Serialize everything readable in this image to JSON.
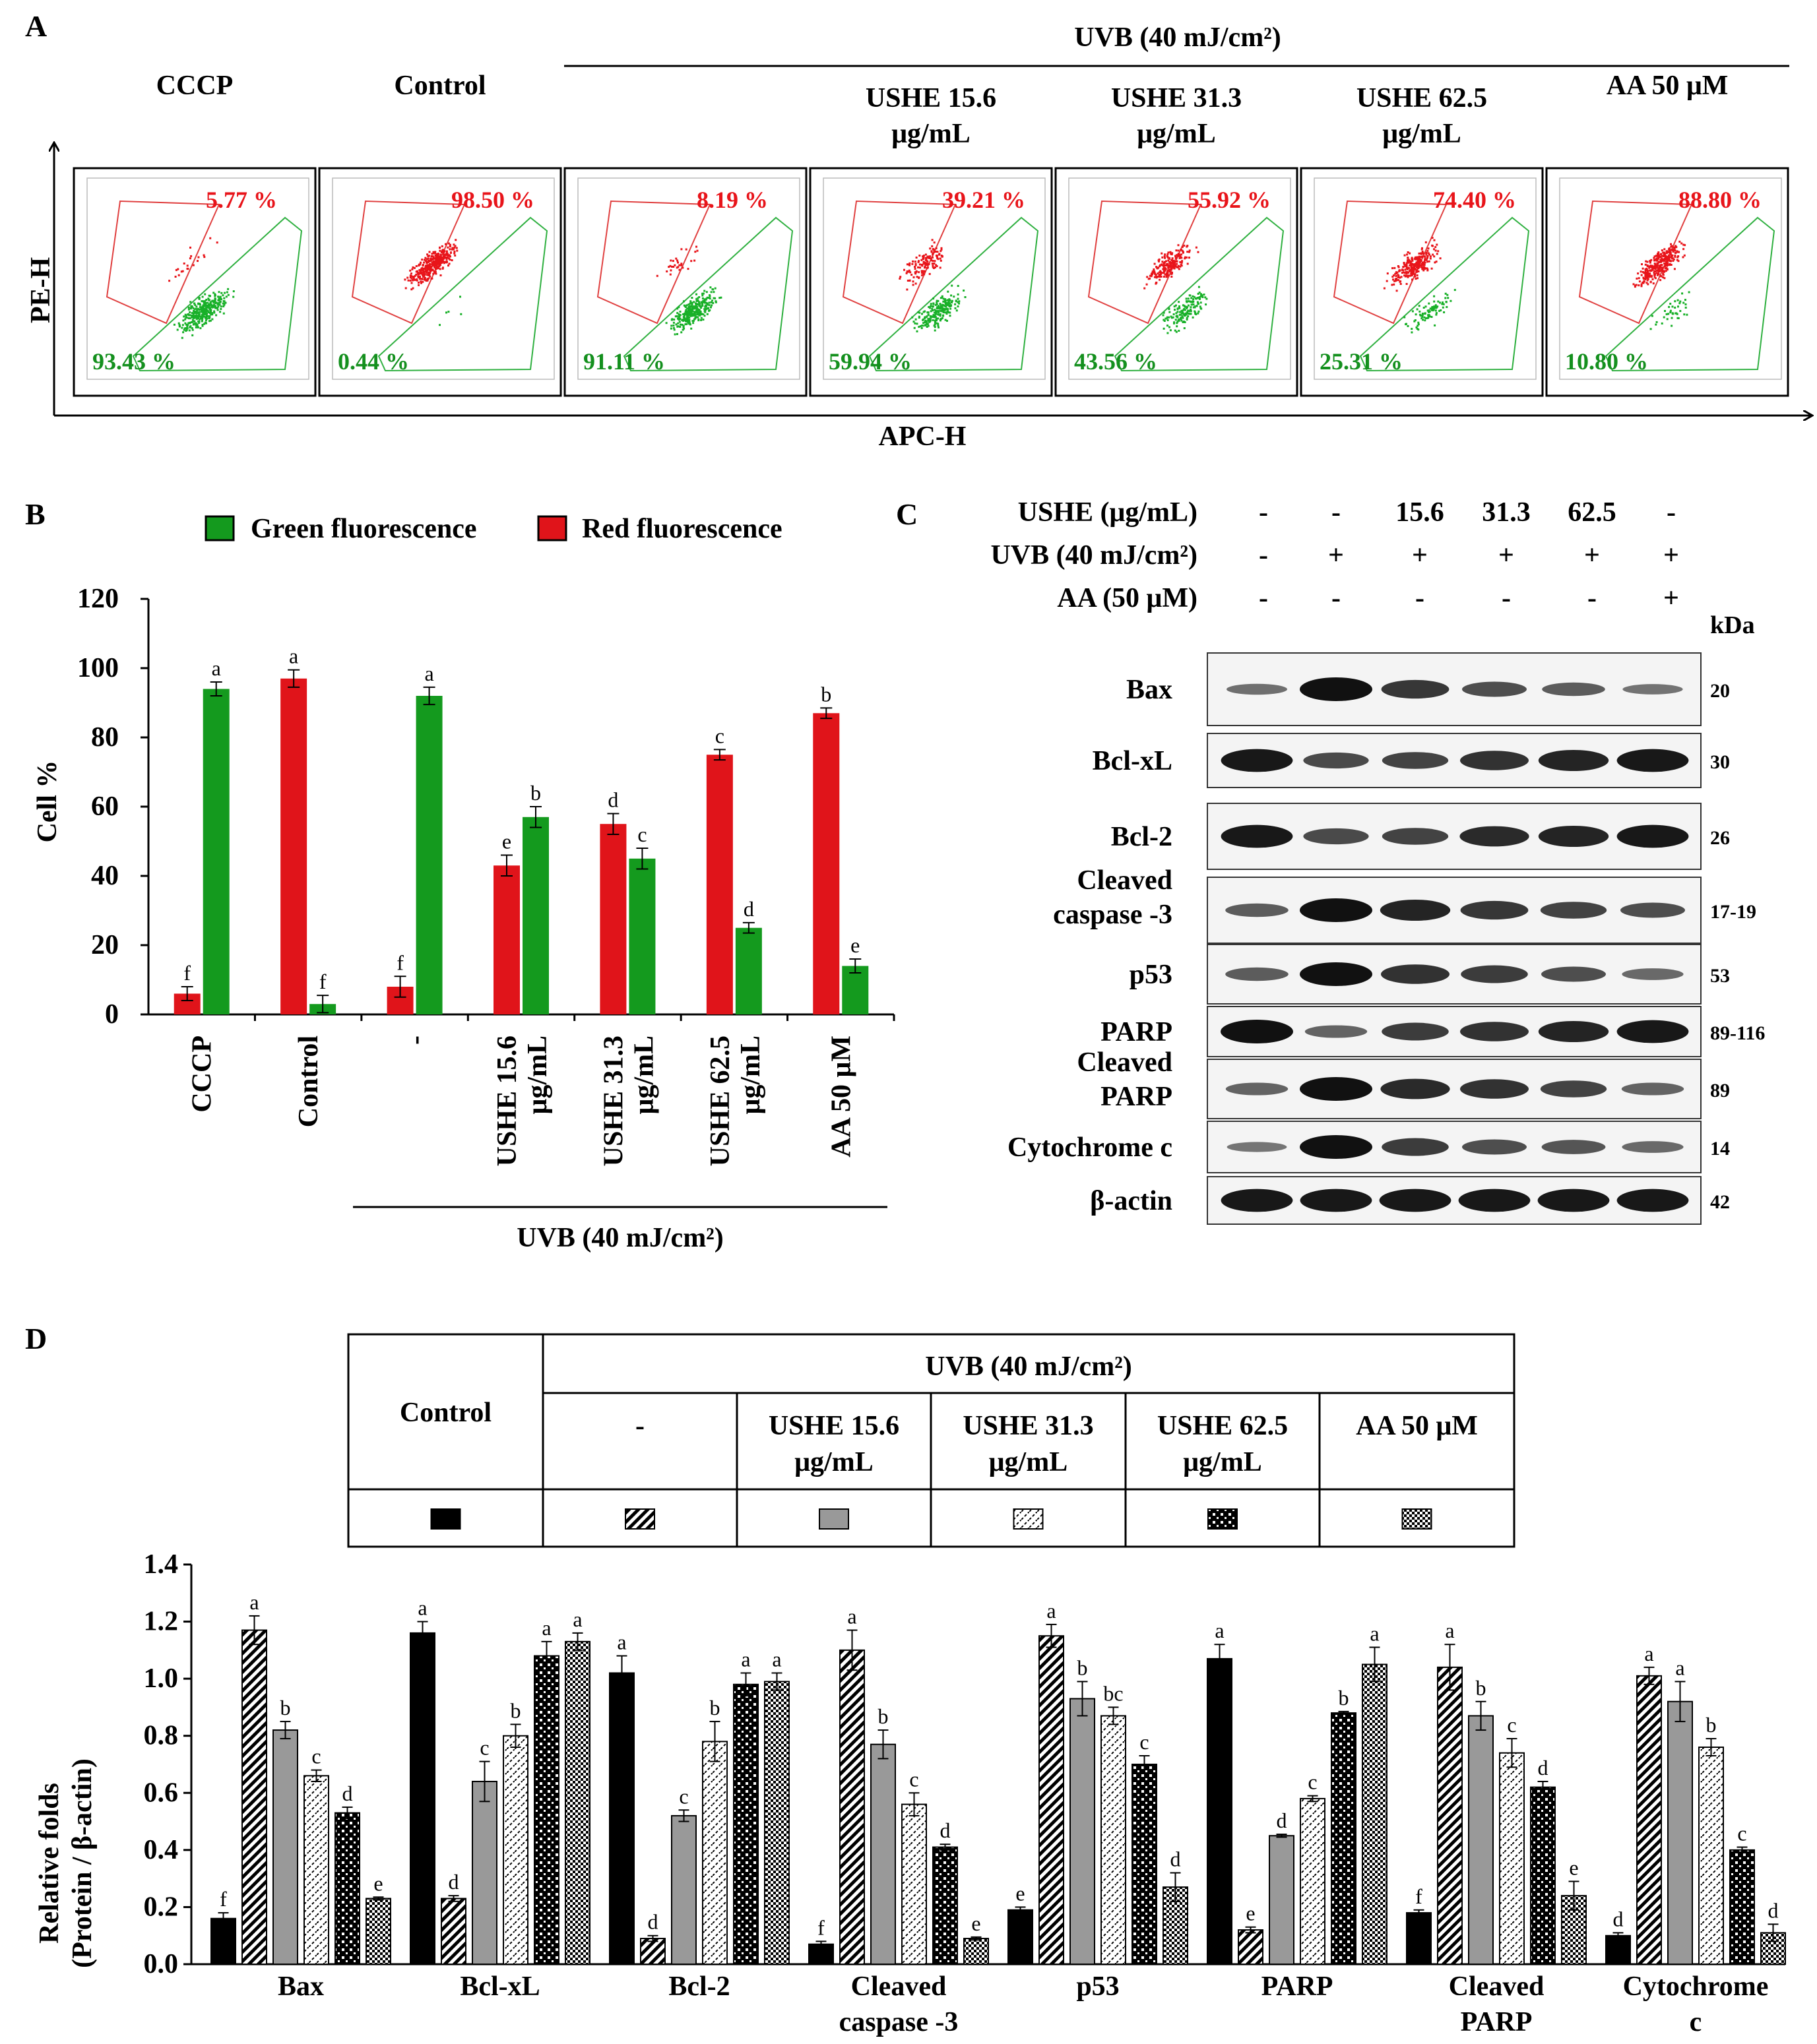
{
  "panel_labels": {
    "a": "A",
    "b": "B",
    "c": "C",
    "d": "D"
  },
  "flow": {
    "group_label": "UVB (40 mJ/cm²)",
    "x_axis": "APC-H",
    "y_axis": "PE-H",
    "plots": [
      {
        "title1": "CCCP",
        "title2": "",
        "red": "5.77 %",
        "green": "93.43 %",
        "red_frac": 0.0577
      },
      {
        "title1": "Control",
        "title2": "",
        "red": "98.50 %",
        "green": "0.44 %",
        "red_frac": 0.985
      },
      {
        "title1": "",
        "title2": "",
        "red": "8.19 %",
        "green": "91.11 %",
        "red_frac": 0.0819
      },
      {
        "title1": "USHE 15.6",
        "title2": "μg/mL",
        "red": "39.21 %",
        "green": "59.94 %",
        "red_frac": 0.3921
      },
      {
        "title1": "USHE 31.3",
        "title2": "μg/mL",
        "red": "55.92 %",
        "green": "43.56 %",
        "red_frac": 0.5592
      },
      {
        "title1": "USHE 62.5",
        "title2": "μg/mL",
        "red": "74.40 %",
        "green": "25.31 %",
        "red_frac": 0.744
      },
      {
        "title1": "AA 50 μM",
        "title2": "",
        "red": "88.80 %",
        "green": "10.80 %",
        "red_frac": 0.888
      }
    ]
  },
  "chart_data": [
    {
      "type": "bar",
      "title": "",
      "ylabel": "Cell %",
      "ylim": [
        0,
        120
      ],
      "yticks": [
        "0",
        "20",
        "40",
        "60",
        "80",
        "100",
        "120"
      ],
      "legend_green": "Green fluorescence",
      "legend_red": "Red fluorescence",
      "group_label": "UVB (40 mJ/cm²)",
      "categories": [
        "CCCP",
        "Control",
        "-",
        "USHE 15.6 μg/mL",
        "USHE 31.3 μg/mL",
        "USHE 62.5 μg/mL",
        "AA 50 μM"
      ],
      "series": [
        {
          "name": "Red fluorescence",
          "color": "#e0141a",
          "values": [
            6,
            97,
            8,
            43,
            55,
            75,
            87
          ],
          "errors": [
            2,
            2.5,
            3,
            3,
            3,
            1.5,
            1.5
          ],
          "letters": [
            "f",
            "a",
            "f",
            "e",
            "d",
            "c",
            "b"
          ]
        },
        {
          "name": "Green fluorescence",
          "color": "#149a1e",
          "values": [
            94,
            3,
            92,
            57,
            45,
            25,
            14
          ],
          "errors": [
            2,
            2.5,
            2.5,
            3,
            3,
            1.5,
            2
          ],
          "letters": [
            "a",
            "f",
            "a",
            "b",
            "c",
            "d",
            "e"
          ]
        }
      ]
    },
    {
      "type": "bar",
      "title": "",
      "ylabel1": "Relative folds",
      "ylabel2": "(Protein / β-actin)",
      "ylim": [
        0,
        1.4
      ],
      "yticks": [
        "0.0",
        "0.2",
        "0.4",
        "0.6",
        "0.8",
        "1.0",
        "1.2",
        "1.4"
      ],
      "categories": [
        [
          "Bax"
        ],
        [
          "Bcl-xL"
        ],
        [
          "Bcl-2"
        ],
        [
          "Cleaved",
          "caspase -3"
        ],
        [
          "p53"
        ],
        [
          "PARP"
        ],
        [
          "Cleaved",
          "PARP"
        ],
        [
          "Cytochrome",
          "c"
        ]
      ],
      "legend": {
        "header_control": "Control",
        "header_uvb": "UVB (40 mJ/cm²)",
        "columns": [
          "-",
          "USHE 15.6 μg/mL",
          "USHE 31.3 μg/mL",
          "USHE 62.5 μg/mL",
          "AA 50 μM"
        ]
      },
      "series": [
        {
          "name": "Control",
          "pattern": "solid",
          "values": [
            0.16,
            1.16,
            1.02,
            0.07,
            0.19,
            1.07,
            0.18,
            0.1
          ],
          "errors": [
            0.02,
            0.04,
            0.06,
            0.01,
            0.01,
            0.05,
            0.01,
            0.01
          ],
          "letters": [
            "f",
            "a",
            "a",
            "f",
            "e",
            "a",
            "f",
            "d"
          ]
        },
        {
          "name": "-",
          "pattern": "diag",
          "values": [
            1.17,
            0.23,
            0.09,
            1.1,
            1.15,
            0.12,
            1.04,
            1.01
          ],
          "errors": [
            0.05,
            0.01,
            0.01,
            0.07,
            0.04,
            0.01,
            0.08,
            0.03
          ],
          "letters": [
            "a",
            "d",
            "d",
            "a",
            "a",
            "e",
            "a",
            "a"
          ]
        },
        {
          "name": "USHE 15.6 μg/mL",
          "pattern": "gray",
          "values": [
            0.82,
            0.64,
            0.52,
            0.77,
            0.93,
            0.45,
            0.87,
            0.92
          ],
          "errors": [
            0.03,
            0.07,
            0.02,
            0.05,
            0.06,
            0.005,
            0.05,
            0.07
          ],
          "letters": [
            "b",
            "c",
            "c",
            "b",
            "b",
            "d",
            "b",
            "a"
          ]
        },
        {
          "name": "USHE 31.3 μg/mL",
          "pattern": "dash",
          "values": [
            0.66,
            0.8,
            0.78,
            0.56,
            0.87,
            0.58,
            0.74,
            0.76
          ],
          "errors": [
            0.02,
            0.04,
            0.07,
            0.04,
            0.03,
            0.01,
            0.05,
            0.03
          ],
          "letters": [
            "c",
            "b",
            "b",
            "c",
            "bc",
            "c",
            "c",
            "b"
          ]
        },
        {
          "name": "USHE 62.5 μg/mL",
          "pattern": "dots",
          "values": [
            0.53,
            1.08,
            0.98,
            0.41,
            0.7,
            0.88,
            0.62,
            0.4
          ],
          "errors": [
            0.02,
            0.05,
            0.04,
            0.01,
            0.03,
            0.005,
            0.02,
            0.01
          ],
          "letters": [
            "d",
            "a",
            "a",
            "d",
            "c",
            "b",
            "d",
            "c"
          ]
        },
        {
          "name": "AA 50 μM",
          "pattern": "check",
          "values": [
            0.23,
            1.13,
            0.99,
            0.09,
            0.27,
            1.05,
            0.24,
            0.11
          ],
          "errors": [
            0.005,
            0.03,
            0.03,
            0.005,
            0.05,
            0.06,
            0.05,
            0.03
          ],
          "letters": [
            "e",
            "a",
            "a",
            "e",
            "d",
            "a",
            "e",
            "d"
          ]
        }
      ]
    }
  ],
  "western": {
    "conditions": [
      {
        "label": "USHE (μg/mL)",
        "values": [
          "-",
          "-",
          "15.6",
          "31.3",
          "62.5",
          "-"
        ]
      },
      {
        "label": "UVB (40 mJ/cm²)",
        "values": [
          "-",
          "+",
          "+",
          "+",
          "+",
          "+"
        ]
      },
      {
        "label": "AA (50 μM)",
        "values": [
          "-",
          "-",
          "-",
          "-",
          "-",
          "+"
        ]
      }
    ],
    "kda_header": "kDa",
    "rows": [
      {
        "name1": "Bax",
        "name2": "",
        "kda": "20",
        "intensity": [
          0.25,
          1.0,
          0.7,
          0.5,
          0.4,
          0.22
        ]
      },
      {
        "name1": "Bcl-xL",
        "name2": "",
        "kda": "30",
        "intensity": [
          0.95,
          0.55,
          0.6,
          0.75,
          0.85,
          0.95
        ]
      },
      {
        "name1": "Bcl-2",
        "name2": "",
        "kda": "26",
        "intensity": [
          0.95,
          0.55,
          0.6,
          0.8,
          0.85,
          0.95
        ]
      },
      {
        "name1": "Cleaved",
        "name2": "caspase -3",
        "kda": "17-19",
        "intensity": [
          0.4,
          1.0,
          0.85,
          0.7,
          0.6,
          0.5
        ]
      },
      {
        "name1": "p53",
        "name2": "",
        "kda": "53",
        "intensity": [
          0.4,
          1.0,
          0.75,
          0.65,
          0.5,
          0.3
        ]
      },
      {
        "name1": "PARP",
        "name2": "",
        "kda": "89-116",
        "intensity": [
          1.0,
          0.35,
          0.65,
          0.75,
          0.85,
          0.95
        ]
      },
      {
        "name1": "Cleaved",
        "name2": "PARP",
        "kda": "89",
        "intensity": [
          0.35,
          1.0,
          0.8,
          0.75,
          0.6,
          0.35
        ]
      },
      {
        "name1": "Cytochrome c",
        "name2": "",
        "kda": "14",
        "intensity": [
          0.2,
          1.0,
          0.65,
          0.5,
          0.45,
          0.3
        ]
      },
      {
        "name1": "β-actin",
        "name2": "",
        "kda": "42",
        "intensity": [
          0.95,
          0.95,
          0.95,
          0.95,
          0.95,
          0.95
        ]
      }
    ]
  }
}
